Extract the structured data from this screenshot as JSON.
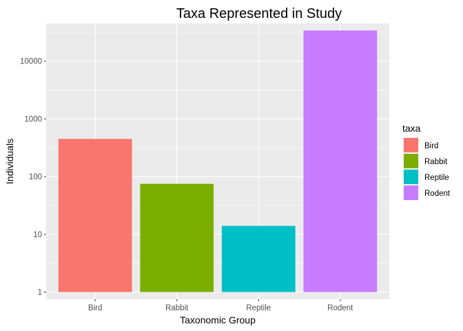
{
  "chart_data": {
    "type": "bar",
    "title": "Taxa Represented in Study",
    "xlabel": "Taxonomic Group",
    "ylabel": "Individuals",
    "y_scale": "log10",
    "ylim": [
      0.75,
      45000
    ],
    "y_ticks": [
      1,
      10,
      100,
      1000,
      10000
    ],
    "y_tick_labels": [
      "1",
      "10",
      "100",
      "1000",
      "10000"
    ],
    "categories": [
      "Bird",
      "Rabbit",
      "Reptile",
      "Rodent"
    ],
    "values": [
      450,
      75,
      14,
      34000
    ],
    "colors": [
      "#F8766D",
      "#7CAE00",
      "#00BFC4",
      "#C77CFF"
    ],
    "grid": true,
    "legend": {
      "title": "taxa",
      "placement": "right",
      "entries": [
        "Bird",
        "Rabbit",
        "Reptile",
        "Rodent"
      ]
    }
  }
}
